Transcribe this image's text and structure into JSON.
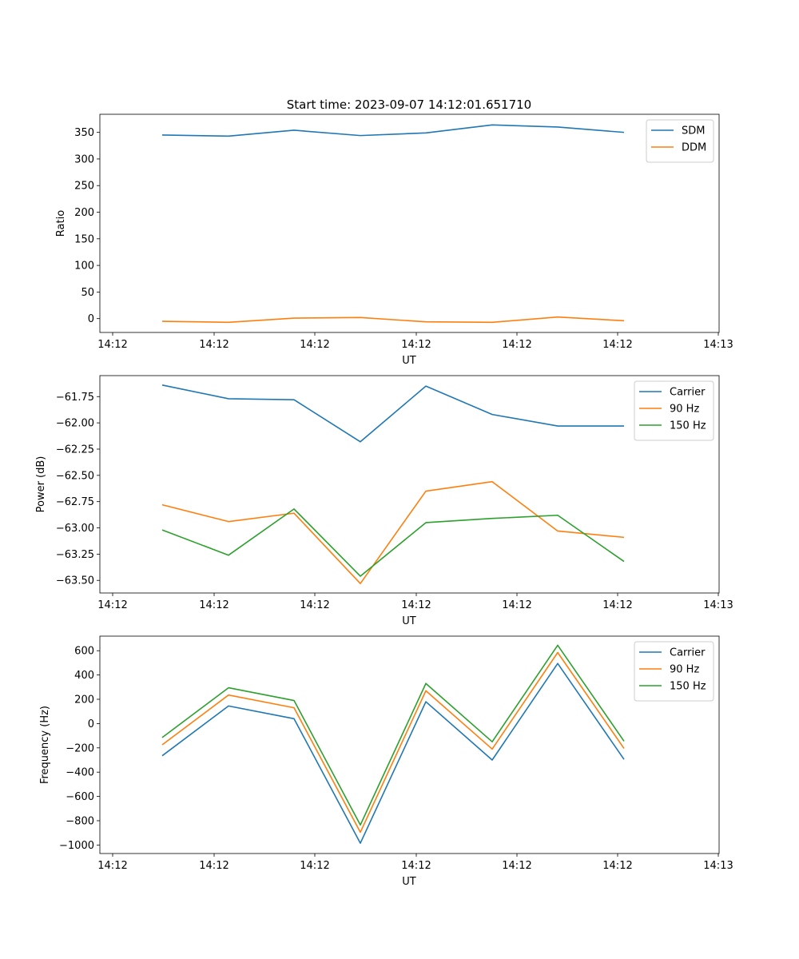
{
  "figure": {
    "title": "Start time: 2023-09-07 14:12:01.651710"
  },
  "chart_data": [
    {
      "type": "line",
      "title": "Start time: 2023-09-07 14:12:01.651710",
      "xlabel": "UT",
      "ylabel": "Ratio",
      "x_ticks": [
        "14:12",
        "14:12",
        "14:12",
        "14:12",
        "14:12",
        "14:12",
        "14:13"
      ],
      "y_ticks": [
        "0",
        "50",
        "100",
        "150",
        "200",
        "250",
        "300",
        "350"
      ],
      "ylim": [
        -26,
        384
      ],
      "legend_position": "top-right",
      "x": [
        1,
        2,
        3,
        4,
        5,
        6,
        7,
        8
      ],
      "series": [
        {
          "name": "SDM",
          "color": "#1f77b4",
          "values": [
            345,
            343,
            354,
            344,
            349,
            364,
            360,
            350
          ]
        },
        {
          "name": "DDM",
          "color": "#ff7f0e",
          "values": [
            -5,
            -7,
            1,
            2,
            -6,
            -7,
            3,
            -4
          ]
        }
      ]
    },
    {
      "type": "line",
      "title": "",
      "xlabel": "UT",
      "ylabel": "Power (dB)",
      "x_ticks": [
        "14:12",
        "14:12",
        "14:12",
        "14:12",
        "14:12",
        "14:12",
        "14:13"
      ],
      "y_ticks": [
        "−61.75",
        "−62.00",
        "−62.25",
        "−62.50",
        "−62.75",
        "−63.00",
        "−63.25",
        "−63.50"
      ],
      "ylim": [
        -63.62,
        -61.55
      ],
      "legend_position": "top-right",
      "x": [
        1,
        2,
        3,
        4,
        5,
        6,
        7,
        8
      ],
      "series": [
        {
          "name": "Carrier",
          "color": "#1f77b4",
          "values": [
            -61.64,
            -61.77,
            -61.78,
            -62.18,
            -61.65,
            -61.92,
            -62.03,
            -62.03
          ]
        },
        {
          "name": "90 Hz",
          "color": "#ff7f0e",
          "values": [
            -62.78,
            -62.94,
            -62.86,
            -63.53,
            -62.65,
            -62.56,
            -63.03,
            -63.09
          ]
        },
        {
          "name": "150 Hz",
          "color": "#2ca02c",
          "values": [
            -63.02,
            -63.26,
            -62.82,
            -63.46,
            -62.95,
            -62.91,
            -62.88,
            -63.32
          ]
        }
      ]
    },
    {
      "type": "line",
      "title": "",
      "xlabel": "UT",
      "ylabel": "Frequency (Hz)",
      "x_ticks": [
        "14:12",
        "14:12",
        "14:12",
        "14:12",
        "14:12",
        "14:12",
        "14:13"
      ],
      "y_ticks": [
        "−1000",
        "−800",
        "−600",
        "−400",
        "−200",
        "0",
        "200",
        "400",
        "600"
      ],
      "ylim": [
        -1070,
        720
      ],
      "legend_position": "top-right",
      "x": [
        1,
        2,
        3,
        4,
        5,
        6,
        7,
        8
      ],
      "series": [
        {
          "name": "Carrier",
          "color": "#1f77b4",
          "values": [
            -265,
            145,
            40,
            -985,
            180,
            -300,
            495,
            -295
          ]
        },
        {
          "name": "90 Hz",
          "color": "#ff7f0e",
          "values": [
            -175,
            235,
            130,
            -895,
            270,
            -210,
            585,
            -205
          ]
        },
        {
          "name": "150 Hz",
          "color": "#2ca02c",
          "values": [
            -115,
            295,
            190,
            -835,
            330,
            -150,
            645,
            -145
          ]
        }
      ]
    }
  ]
}
